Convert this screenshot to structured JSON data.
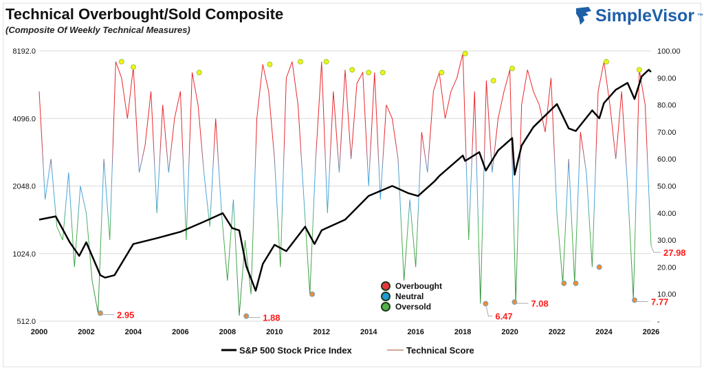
{
  "title": "Technical Overbought/Sold Composite",
  "subtitle": "(Composite Of Weekly Technical Measures)",
  "logo": "SimpleVisor",
  "logo_tm": "™",
  "chart_data": {
    "type": "line",
    "title": "Technical Overbought/Sold Composite",
    "subtitle": "(Composite Of Weekly Technical Measures)",
    "x_ticks": [
      "2000",
      "2002",
      "2004",
      "2006",
      "2008",
      "2010",
      "2012",
      "2014",
      "2016",
      "2018",
      "2020",
      "2022",
      "2024",
      "2026"
    ],
    "xlim": [
      2000,
      2026
    ],
    "left_axis": {
      "scale": "log2",
      "ylim": [
        512,
        8192
      ],
      "ticks": [
        "8192.0",
        "4096.0",
        "2048.0",
        "1024.0",
        "512.0"
      ]
    },
    "right_axis": {
      "ylim": [
        0,
        100
      ],
      "ticks": [
        "100.00",
        "90.00",
        "80.00",
        "70.00",
        "60.00",
        "50.00",
        "40.00",
        "30.00",
        "20.00",
        "10.00",
        "-"
      ]
    },
    "grid": "horizontal",
    "series": [
      {
        "name": "S&P 500 Stock Price Index",
        "axis": "left",
        "color": "#000000",
        "x": [
          2000,
          2000.7,
          2001.3,
          2001.7,
          2002,
          2002.6,
          2002.8,
          2003.2,
          2004,
          2005,
          2006,
          2007,
          2007.8,
          2008.2,
          2008.5,
          2008.8,
          2009.2,
          2009.5,
          2010,
          2010.5,
          2011.3,
          2011.7,
          2012,
          2013,
          2014,
          2015,
          2015.7,
          2016.1,
          2016.8,
          2017,
          2018,
          2018.1,
          2018.7,
          2018.98,
          2019.5,
          2020.1,
          2020.2,
          2020.5,
          2021,
          2022,
          2022.5,
          2022.8,
          2023.5,
          2023.8,
          2024,
          2024.5,
          2025,
          2025.3,
          2025.6,
          2025.9,
          2026
        ],
        "y": [
          1450,
          1500,
          1150,
          1000,
          1150,
          820,
          800,
          820,
          1130,
          1200,
          1280,
          1420,
          1550,
          1330,
          1300,
          900,
          700,
          920,
          1120,
          1050,
          1350,
          1130,
          1300,
          1450,
          1850,
          2050,
          1900,
          1850,
          2150,
          2270,
          2800,
          2650,
          2900,
          2400,
          2950,
          3350,
          2300,
          3100,
          3750,
          4750,
          3700,
          3600,
          4450,
          4100,
          4800,
          5500,
          5900,
          5000,
          6300,
          6750,
          6600
        ]
      },
      {
        "name": "Technical Score",
        "axis": "right",
        "color": "#c0504d",
        "x_start": 2000,
        "x_step": 0.25,
        "y": [
          85,
          45,
          60,
          35,
          30,
          55,
          20,
          50,
          40,
          15,
          3,
          60,
          30,
          96,
          90,
          75,
          94,
          55,
          65,
          85,
          40,
          80,
          55,
          75,
          85,
          30,
          92,
          80,
          55,
          35,
          75,
          40,
          15,
          45,
          2,
          30,
          10,
          75,
          95,
          85,
          60,
          20,
          90,
          96,
          80,
          45,
          10,
          60,
          96,
          40,
          85,
          55,
          93,
          60,
          88,
          92,
          50,
          92,
          45,
          80,
          75,
          60,
          15,
          45,
          20,
          70,
          55,
          85,
          92,
          75,
          85,
          90,
          99,
          30,
          85,
          6.5,
          89,
          55,
          75,
          85,
          93,
          7,
          80,
          93,
          85,
          80,
          70,
          90,
          40,
          14,
          60,
          14,
          70,
          55,
          20,
          85,
          96,
          80,
          60,
          85,
          50,
          8,
          93,
          80,
          27.98
        ]
      }
    ],
    "overbought_markers": [
      [
        2003.5,
        96
      ],
      [
        2004,
        94
      ],
      [
        2006.8,
        92
      ],
      [
        2009.8,
        95
      ],
      [
        2011.1,
        96
      ],
      [
        2012.2,
        96
      ],
      [
        2013.3,
        93
      ],
      [
        2014,
        92
      ],
      [
        2014.6,
        92
      ],
      [
        2017.1,
        92
      ],
      [
        2018.1,
        99
      ],
      [
        2019.3,
        89
      ],
      [
        2020.1,
        93.5
      ],
      [
        2024.1,
        96
      ],
      [
        2025.5,
        93
      ]
    ],
    "oversold_markers": [
      [
        2002.6,
        2.95
      ],
      [
        2008.8,
        1.88
      ],
      [
        2011.6,
        10
      ],
      [
        2018.97,
        6.47
      ],
      [
        2020.2,
        7.08
      ],
      [
        2022.3,
        14
      ],
      [
        2022.8,
        14
      ],
      [
        2023.8,
        20
      ],
      [
        2025.3,
        7.77
      ]
    ],
    "annotations": [
      {
        "x": 2002.6,
        "y": 2.95,
        "label": "2.95"
      },
      {
        "x": 2008.8,
        "y": 1.88,
        "label": "1.88"
      },
      {
        "x": 2018.97,
        "y": 6.47,
        "label": "6.47"
      },
      {
        "x": 2020.2,
        "y": 7.08,
        "label": "7.08"
      },
      {
        "x": 2025.3,
        "y": 7.77,
        "label": "7.77"
      },
      {
        "x": 2026,
        "y": 27.98,
        "label": "27.98"
      }
    ],
    "zone_legend": [
      {
        "label": "Overbought",
        "color": "#e8363a"
      },
      {
        "label": "Neutral",
        "color": "#1f9bd7"
      },
      {
        "label": "Oversold",
        "color": "#55b04a"
      }
    ],
    "legend_placement": "bottom",
    "legend": [
      {
        "label": "S&P 500 Stock Price Index",
        "color": "#000000"
      },
      {
        "label": "Technical Score",
        "color": "#a0522d"
      }
    ]
  }
}
